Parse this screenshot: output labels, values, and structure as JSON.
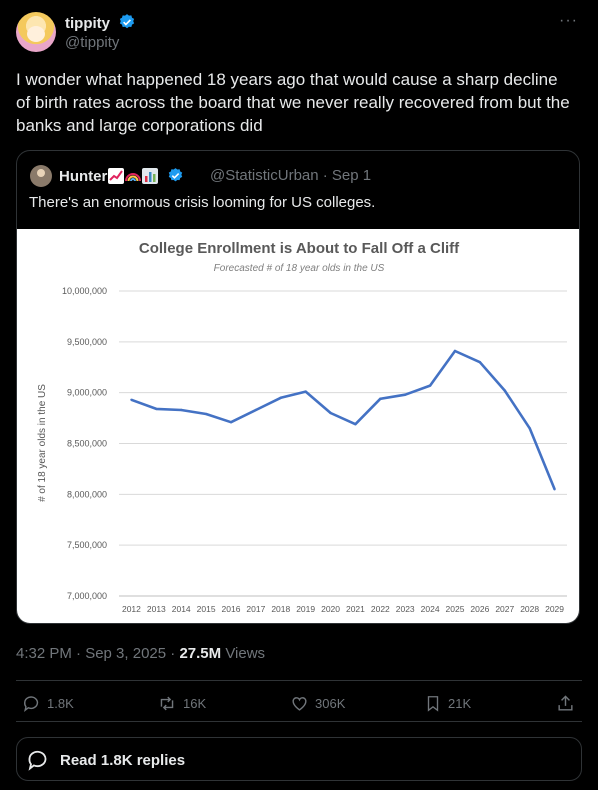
{
  "author": {
    "name": "tippity",
    "handle": "@tippity"
  },
  "tweet": {
    "text": "I wonder what happened 18 years ago that would cause a sharp decline of birth rates across the board that we never really recovered from but the banks and large corporations did",
    "time": "4:32 PM · Sep 3, 2025 ·",
    "views_count": "27.5M",
    "views_label": "Views"
  },
  "quote": {
    "name": "Hunter",
    "handle_time": "@StatisticUrban · Sep 1",
    "text": "There's an enormous crisis looming for US colleges."
  },
  "actions": {
    "replies": "1.8K",
    "retweets": "16K",
    "likes": "306K",
    "bookmarks": "21K"
  },
  "read_replies_label": "Read 1.8K replies",
  "more_label": "···",
  "colors": {
    "verified": "#1d9bf0",
    "line": "#4472c4",
    "muted": "#71767b"
  },
  "chart_data": {
    "type": "line",
    "title": "College Enrollment is About to Fall Off a Cliff",
    "subtitle": "Forecasted # of 18 year olds in the US",
    "xlabel": "",
    "ylabel": "# of 18 year olds in the US",
    "ylim": [
      7000000,
      10000000
    ],
    "yticks": [
      "10,000,000",
      "9,500,000",
      "9,000,000",
      "8,500,000",
      "8,000,000",
      "7,500,000",
      "7,000,000"
    ],
    "ytick_values": [
      10000000,
      9500000,
      9000000,
      8500000,
      8000000,
      7500000,
      7000000
    ],
    "x": [
      "2012",
      "2013",
      "2014",
      "2015",
      "2016",
      "2017",
      "2018",
      "2019",
      "2020",
      "2021",
      "2022",
      "2023",
      "2024",
      "2025",
      "2026",
      "2027",
      "2028",
      "2029"
    ],
    "values": [
      8930000,
      8840000,
      8830000,
      8790000,
      8710000,
      8830000,
      8950000,
      9010000,
      8800000,
      8690000,
      8940000,
      8980000,
      9070000,
      9410000,
      9300000,
      9020000,
      8650000,
      8050000
    ],
    "grid": true
  }
}
